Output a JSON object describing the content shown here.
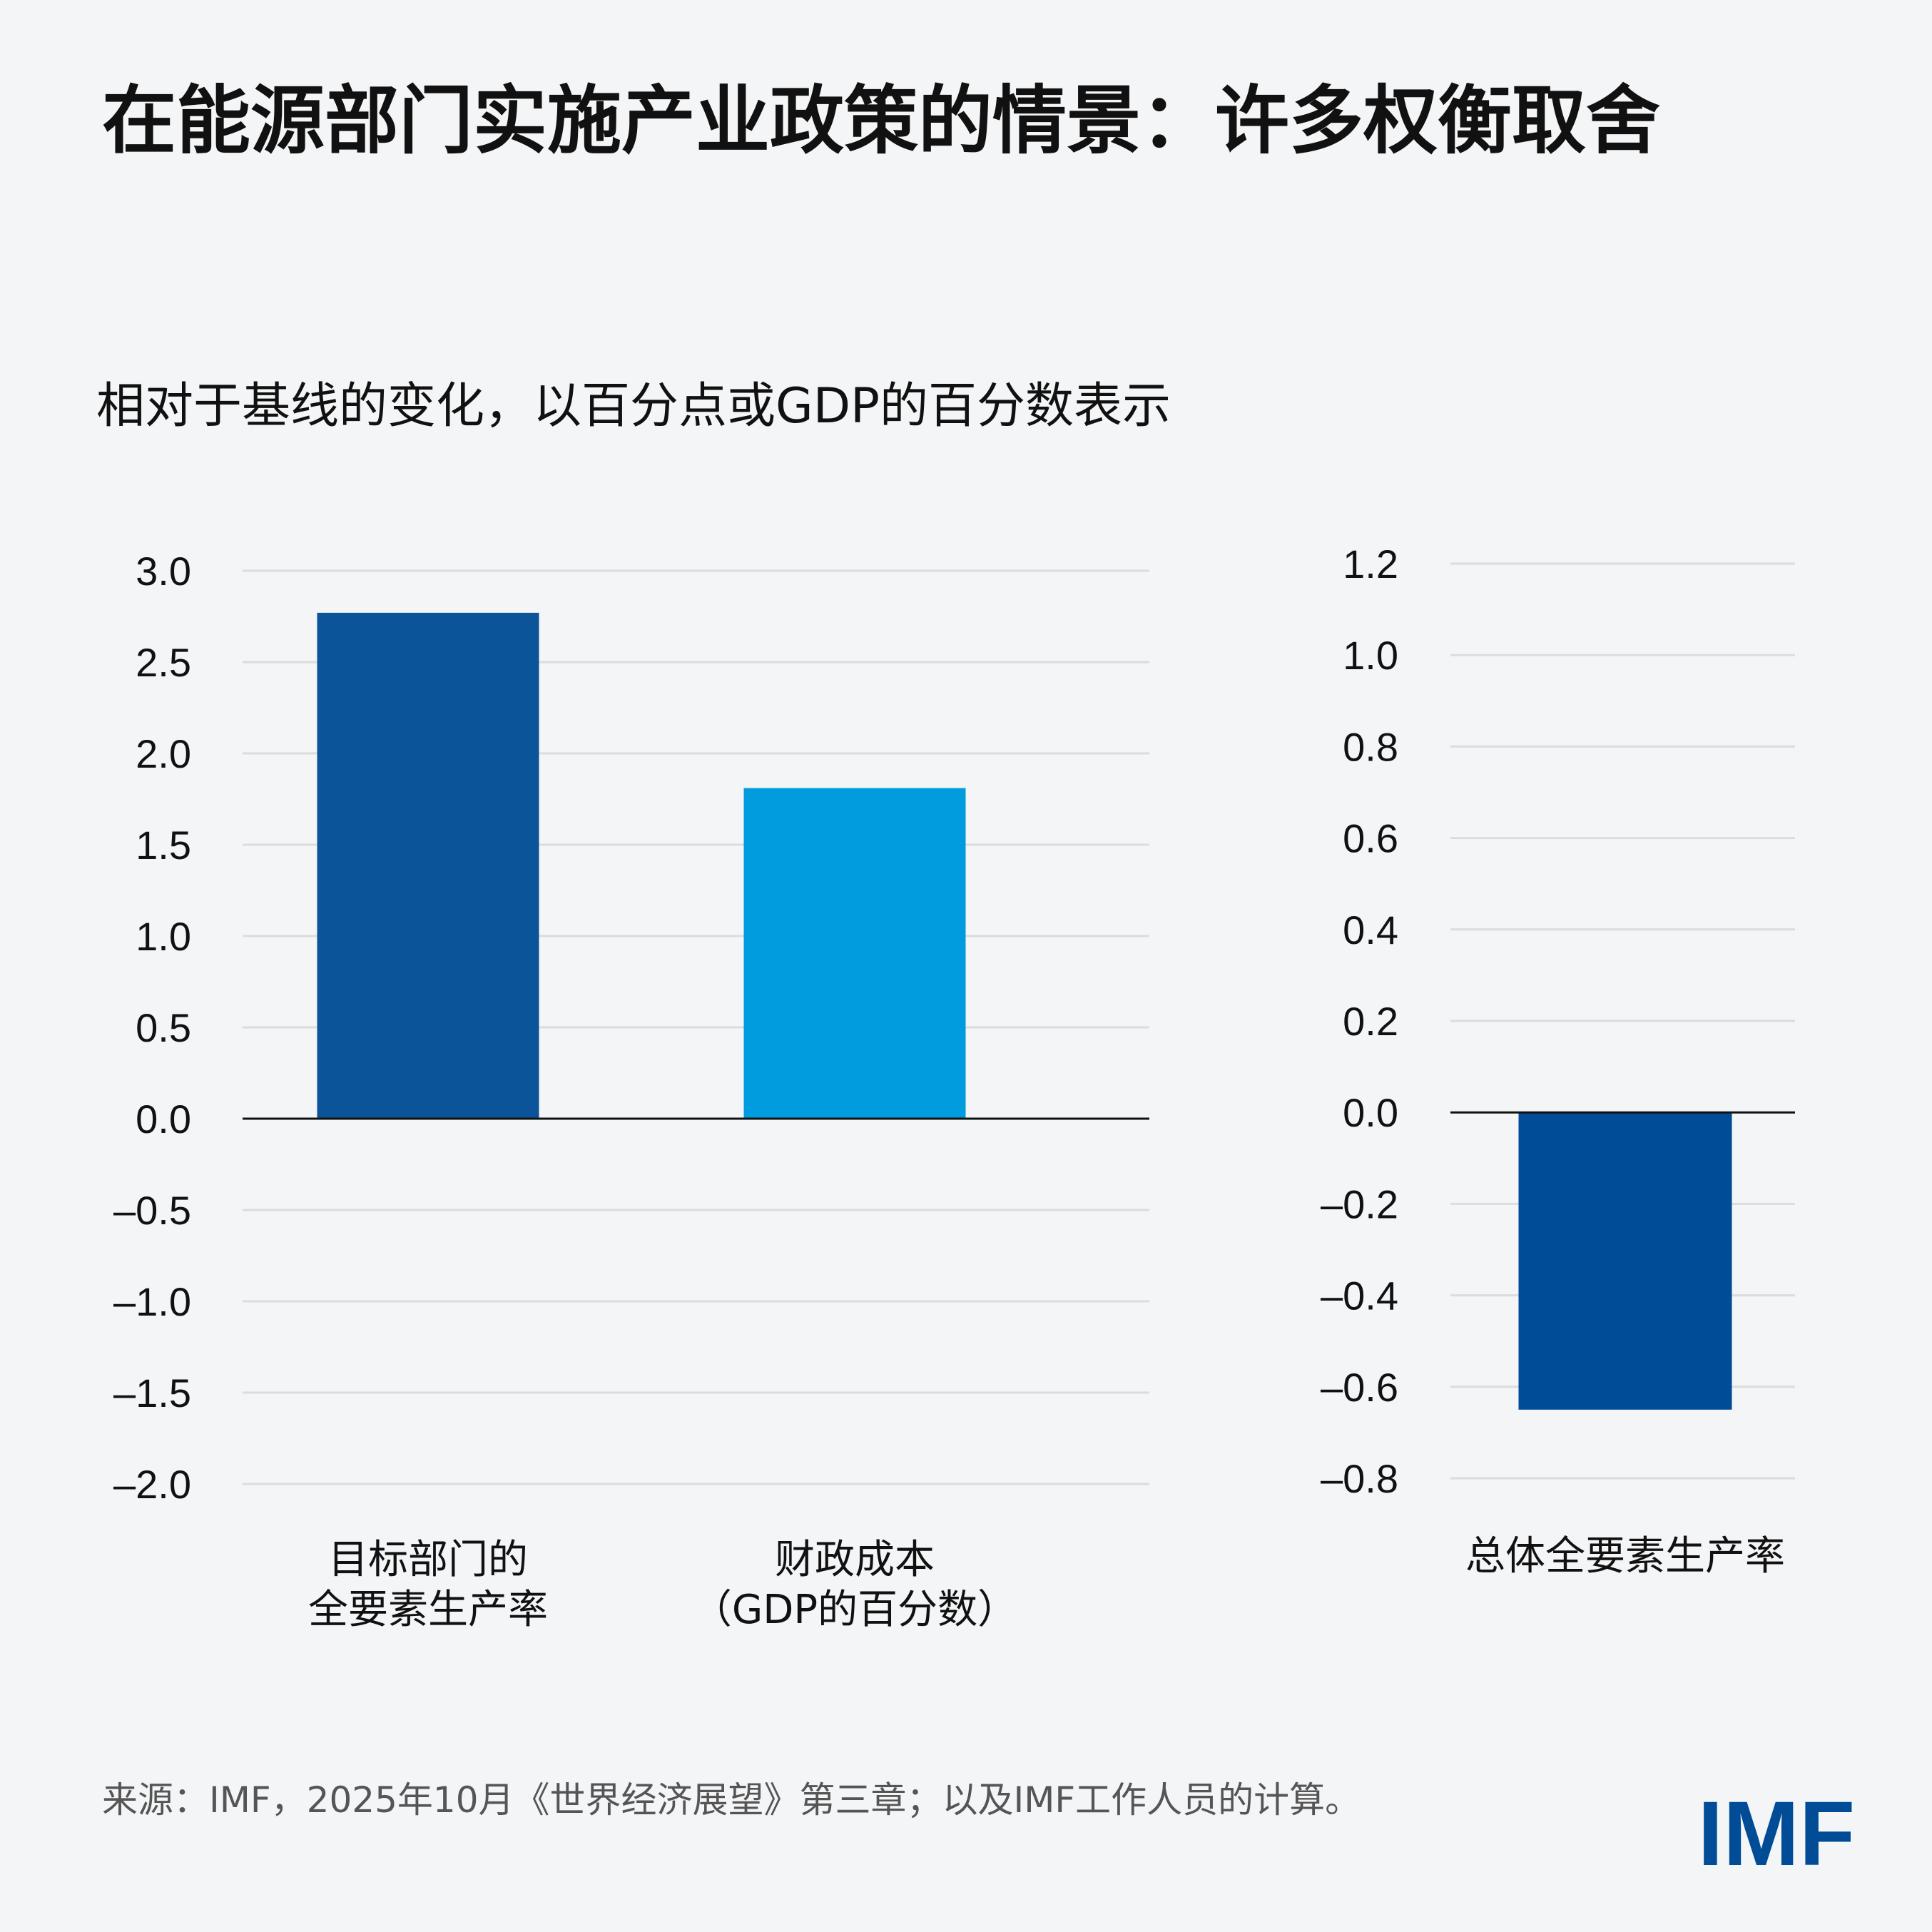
{
  "title": "在能源部门实施产业政策的情景：许多权衡取舍",
  "subtitle": "相对于基线的变化，以百分点或GDP的百分数表示",
  "source": "来源：IMF，2025年10月《世界经济展望》第三章；以及IMF工作人员的计算。",
  "logo": "IMF",
  "chart_data": [
    {
      "type": "bar",
      "categories": [
        [
          "目标部门的",
          "全要素生产率"
        ],
        [
          "财政成本",
          "（GDP的百分数）"
        ]
      ],
      "values": [
        2.77,
        1.81
      ],
      "colors": [
        "#0b5499",
        "#009cde"
      ],
      "ylim": [
        -2.0,
        3.0
      ],
      "yticks": [
        3.0,
        2.5,
        2.0,
        1.5,
        1.0,
        0.5,
        0.0,
        -0.5,
        -1.0,
        -1.5,
        -2.0
      ],
      "ytick_labels": [
        "3.0",
        "2.5",
        "2.0",
        "1.5",
        "1.0",
        "0.5",
        "0.0",
        "–0.5",
        "–1.0",
        "–1.5",
        "–2.0"
      ],
      "grid": true
    },
    {
      "type": "bar",
      "categories": [
        [
          "总体全要素生产率"
        ]
      ],
      "values": [
        -0.65
      ],
      "colors": [
        "#004c97"
      ],
      "ylim": [
        -0.8,
        1.2
      ],
      "yticks": [
        1.2,
        1.0,
        0.8,
        0.6,
        0.4,
        0.2,
        0.0,
        -0.2,
        -0.4,
        -0.6,
        -0.8
      ],
      "ytick_labels": [
        "1.2",
        "1.0",
        "0.8",
        "0.6",
        "0.4",
        "0.2",
        "0.0",
        "–0.2",
        "–0.4",
        "–0.6",
        "–0.8"
      ],
      "grid": true
    }
  ]
}
